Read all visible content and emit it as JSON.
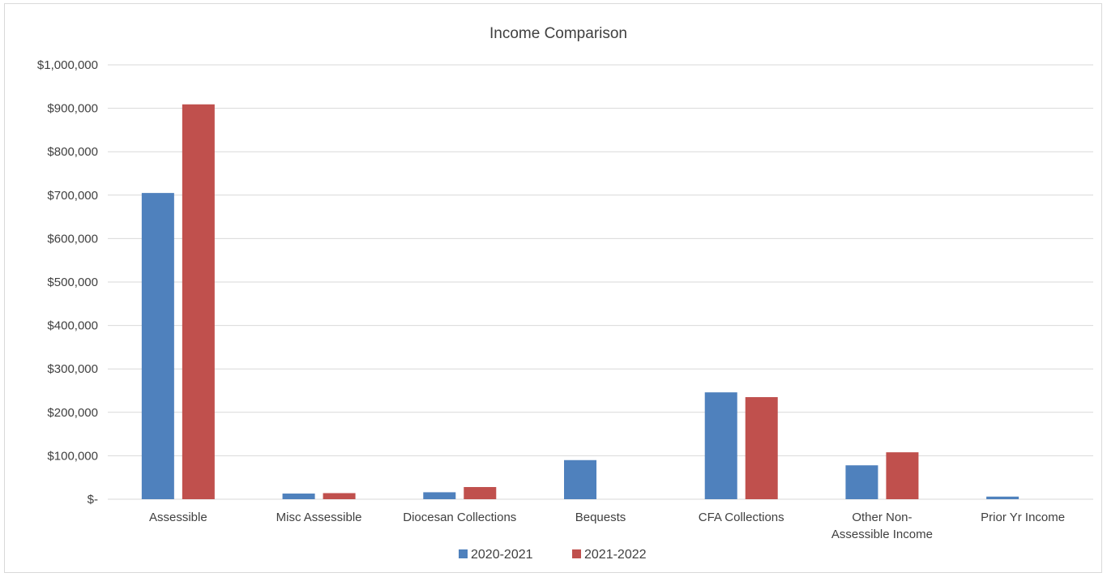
{
  "chart_data": {
    "type": "bar",
    "title": "Income Comparison",
    "xlabel": "",
    "ylabel": "",
    "categories": [
      [
        "Assessible"
      ],
      [
        "Misc Assessible"
      ],
      [
        "Diocesan Collections"
      ],
      [
        "Bequests"
      ],
      [
        "CFA Collections"
      ],
      [
        "Other Non-",
        "Assessible Income"
      ],
      [
        "Prior Yr Income"
      ]
    ],
    "series": [
      {
        "name": "2020-2021",
        "color": "#4f81bd",
        "values": [
          705000,
          13000,
          16000,
          90000,
          246000,
          78000,
          6000
        ]
      },
      {
        "name": "2021-2022",
        "color": "#c0504d",
        "values": [
          909000,
          14000,
          28000,
          0,
          235000,
          108000,
          0
        ]
      }
    ],
    "ylim": [
      0,
      1000000
    ],
    "yticks": [
      0,
      100000,
      200000,
      300000,
      400000,
      500000,
      600000,
      700000,
      800000,
      900000,
      1000000
    ],
    "ytick_labels": [
      "$-",
      "$100,000",
      "$200,000",
      "$300,000",
      "$400,000",
      "$500,000",
      "$600,000",
      "$700,000",
      "$800,000",
      "$900,000",
      "$1,000,000"
    ],
    "grid": true,
    "legend": "bottom",
    "gridline_color": "#d9d9d9"
  }
}
